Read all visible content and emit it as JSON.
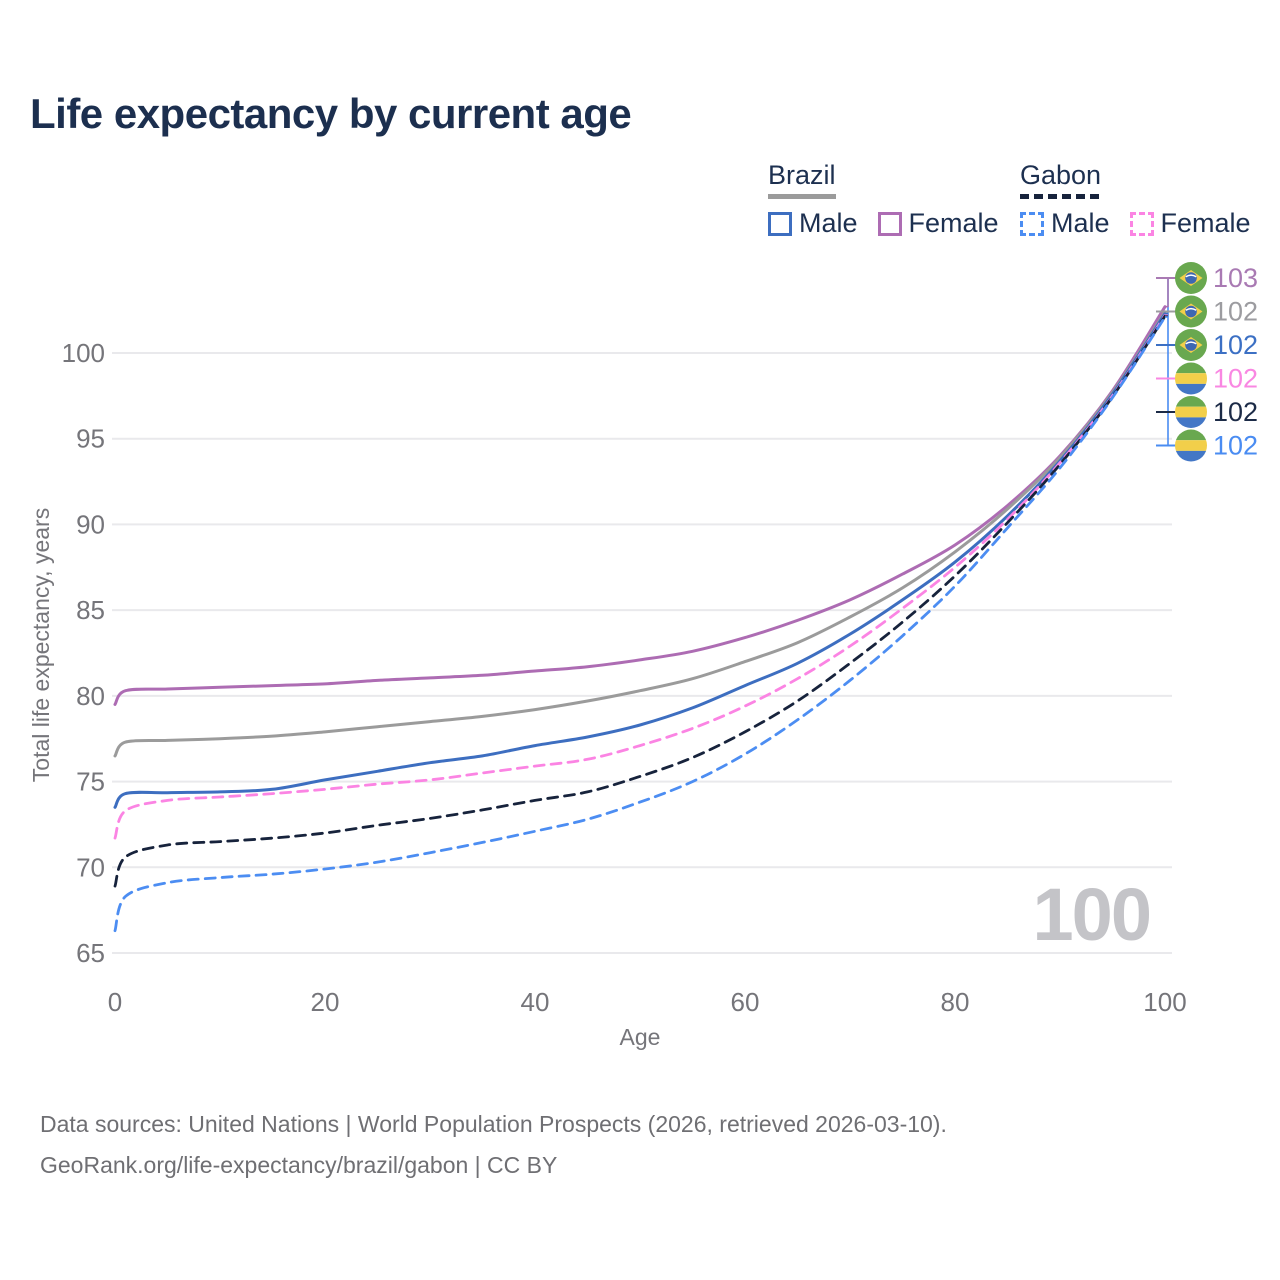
{
  "title": "Life expectancy by current age",
  "legend": {
    "groups": [
      {
        "label": "Brazil",
        "underline_style": "solid",
        "underline_color": "#9b9b9b",
        "items": [
          {
            "label": "Male",
            "color": "#3d6ec0",
            "style": "solid"
          },
          {
            "label": "Female",
            "color": "#ad6cb3",
            "style": "solid"
          }
        ]
      },
      {
        "label": "Gabon",
        "underline_style": "dashed",
        "underline_color": "#17233c",
        "items": [
          {
            "label": "Male",
            "color": "#4c8df2",
            "style": "dashed"
          },
          {
            "label": "Female",
            "color": "#fb84e3",
            "style": "dashed"
          }
        ]
      }
    ]
  },
  "chart_data": {
    "type": "line",
    "title": "Life expectancy by current age",
    "xlabel": "Age",
    "ylabel": "Total life expectancy, years",
    "xlim": [
      0,
      100
    ],
    "ylim": [
      65,
      103
    ],
    "x_ticks": [
      0,
      20,
      40,
      60,
      80,
      100
    ],
    "y_ticks": [
      65,
      70,
      75,
      80,
      85,
      90,
      95,
      100
    ],
    "grid": "horizontal",
    "legend_position": "top-right",
    "ages": [
      0,
      1,
      5,
      10,
      15,
      20,
      25,
      30,
      35,
      40,
      45,
      50,
      55,
      60,
      65,
      70,
      75,
      80,
      85,
      90,
      95,
      100
    ],
    "series": [
      {
        "name": "Brazil Female",
        "country": "Brazil",
        "sex": "Female",
        "color": "#ad6cb3",
        "dash": "solid",
        "values": [
          79.5,
          80.3,
          80.4,
          80.5,
          80.6,
          80.7,
          80.9,
          81.05,
          81.2,
          81.45,
          81.7,
          82.1,
          82.6,
          83.4,
          84.4,
          85.6,
          87.1,
          88.8,
          91.1,
          94.0,
          97.8,
          102.7
        ]
      },
      {
        "name": "Brazil Both sexes",
        "country": "Brazil",
        "sex": "Total",
        "color": "#9b9b9b",
        "dash": "solid",
        "values": [
          76.5,
          77.3,
          77.4,
          77.5,
          77.65,
          77.9,
          78.2,
          78.5,
          78.8,
          79.2,
          79.7,
          80.3,
          81.0,
          82.0,
          83.1,
          84.6,
          86.3,
          88.4,
          90.9,
          93.9,
          97.7,
          102.4
        ]
      },
      {
        "name": "Brazil Male",
        "country": "Brazil",
        "sex": "Male",
        "color": "#3d6ec0",
        "dash": "solid",
        "values": [
          73.5,
          74.3,
          74.35,
          74.4,
          74.55,
          75.1,
          75.6,
          76.1,
          76.5,
          77.1,
          77.6,
          78.3,
          79.3,
          80.6,
          81.9,
          83.6,
          85.6,
          87.8,
          90.5,
          93.7,
          97.6,
          102.3
        ]
      },
      {
        "name": "Gabon Female",
        "country": "Gabon",
        "sex": "Female",
        "color": "#fb84e3",
        "dash": "dashed",
        "values": [
          71.7,
          73.3,
          73.9,
          74.1,
          74.3,
          74.55,
          74.85,
          75.1,
          75.5,
          75.9,
          76.3,
          77.1,
          78.1,
          79.4,
          81.0,
          82.9,
          85.1,
          87.5,
          90.3,
          93.6,
          97.5,
          102.2
        ]
      },
      {
        "name": "Gabon Both sexes",
        "country": "Gabon",
        "sex": "Total",
        "color": "#17233c",
        "dash": "dashed",
        "values": [
          68.9,
          70.6,
          71.3,
          71.5,
          71.7,
          72.0,
          72.45,
          72.85,
          73.35,
          73.9,
          74.4,
          75.3,
          76.4,
          77.9,
          79.7,
          81.9,
          84.3,
          87.0,
          90.1,
          93.5,
          97.45,
          102.15
        ]
      },
      {
        "name": "Gabon Male",
        "country": "Gabon",
        "sex": "Male",
        "color": "#4c8df2",
        "dash": "dashed",
        "values": [
          66.3,
          68.3,
          69.1,
          69.4,
          69.6,
          69.9,
          70.3,
          70.85,
          71.45,
          72.1,
          72.8,
          73.8,
          75.0,
          76.6,
          78.6,
          80.9,
          83.5,
          86.4,
          89.8,
          93.3,
          97.4,
          102.1
        ]
      }
    ],
    "end_labels": [
      {
        "value": "103",
        "flag": "brazil",
        "color": "#a97ab3"
      },
      {
        "value": "102",
        "flag": "brazil",
        "color": "#9c9ca0"
      },
      {
        "value": "102",
        "flag": "brazil",
        "color": "#3c70c4"
      },
      {
        "value": "102",
        "flag": "gabon",
        "color": "#f987e2"
      },
      {
        "value": "102",
        "flag": "gabon",
        "color": "#1c2b47"
      },
      {
        "value": "102",
        "flag": "gabon",
        "color": "#4a8cf2"
      }
    ]
  },
  "watermark": "100",
  "footer": {
    "line1": "Data sources: United Nations | World Population Prospects (2026, retrieved 2026-03-10).",
    "line2": "GeoRank.org/life-expectancy/brazil/gabon | CC BY"
  }
}
